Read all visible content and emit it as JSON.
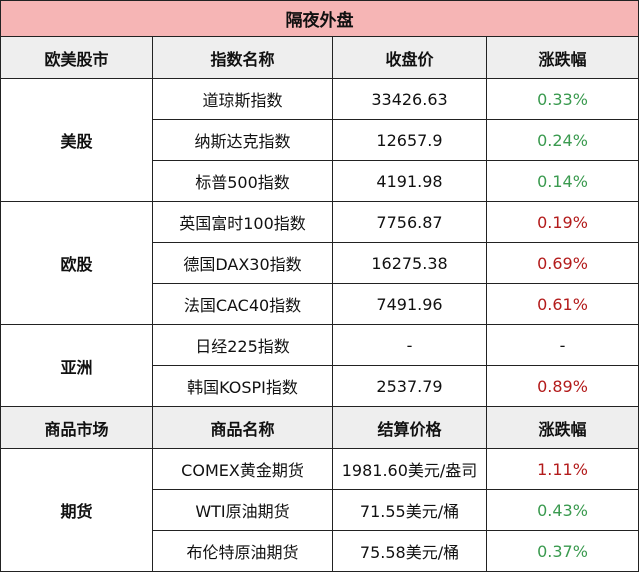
{
  "title": "隔夜外盘",
  "header_stock": [
    "欧美股市",
    "指数名称",
    "收盘价",
    "涨跌幅"
  ],
  "groups": {
    "us": {
      "label": "美股",
      "rows": [
        {
          "name": "道琼斯指数",
          "value": "33426.63",
          "change": "0.33%",
          "dir": "pos"
        },
        {
          "name": "纳斯达克指数",
          "value": "12657.9",
          "change": "0.24%",
          "dir": "pos"
        },
        {
          "name": "标普500指数",
          "value": "4191.98",
          "change": "0.14%",
          "dir": "pos"
        }
      ]
    },
    "eu": {
      "label": "欧股",
      "rows": [
        {
          "name": "英国富时100指数",
          "value": "7756.87",
          "change": "0.19%",
          "dir": "neg"
        },
        {
          "name": "德国DAX30指数",
          "value": "16275.38",
          "change": "0.69%",
          "dir": "neg"
        },
        {
          "name": "法国CAC40指数",
          "value": "7491.96",
          "change": "0.61%",
          "dir": "neg"
        }
      ]
    },
    "asia": {
      "label": "亚洲",
      "rows": [
        {
          "name": "日经225指数",
          "value": "-",
          "change": "-",
          "dir": "flat"
        },
        {
          "name": "韩国KOSPI指数",
          "value": "2537.79",
          "change": "0.89%",
          "dir": "neg"
        }
      ]
    },
    "futures": {
      "label": "期货",
      "rows": [
        {
          "name": "COMEX黄金期货",
          "value": "1981.60美元/盎司",
          "change": "1.11%",
          "dir": "neg"
        },
        {
          "name": "WTI原油期货",
          "value": "71.55美元/桶",
          "change": "0.43%",
          "dir": "pos"
        },
        {
          "name": "布伦特原油期货",
          "value": "75.58美元/桶",
          "change": "0.37%",
          "dir": "pos"
        }
      ]
    }
  },
  "header_commodity": [
    "商品市场",
    "商品名称",
    "结算价格",
    "涨跌幅"
  ],
  "colors": {
    "up": "#3a9a4f",
    "down": "#b31b1b",
    "title_bg": "#f6b5b5",
    "header_bg": "#eeeeee"
  }
}
